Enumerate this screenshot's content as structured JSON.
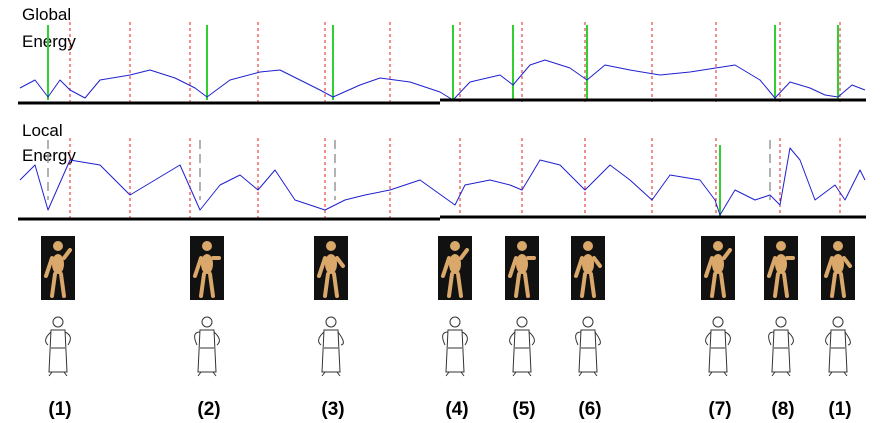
{
  "global_energy": {
    "label": [
      "Global",
      "Energy"
    ]
  },
  "local_energy": {
    "label": [
      "Local",
      "Energy"
    ]
  },
  "keyframes": [
    "(1)",
    "(2)",
    "(3)",
    "(4)",
    "(5)",
    "(6)",
    "(7)",
    "(8)",
    "(1)"
  ]
}
